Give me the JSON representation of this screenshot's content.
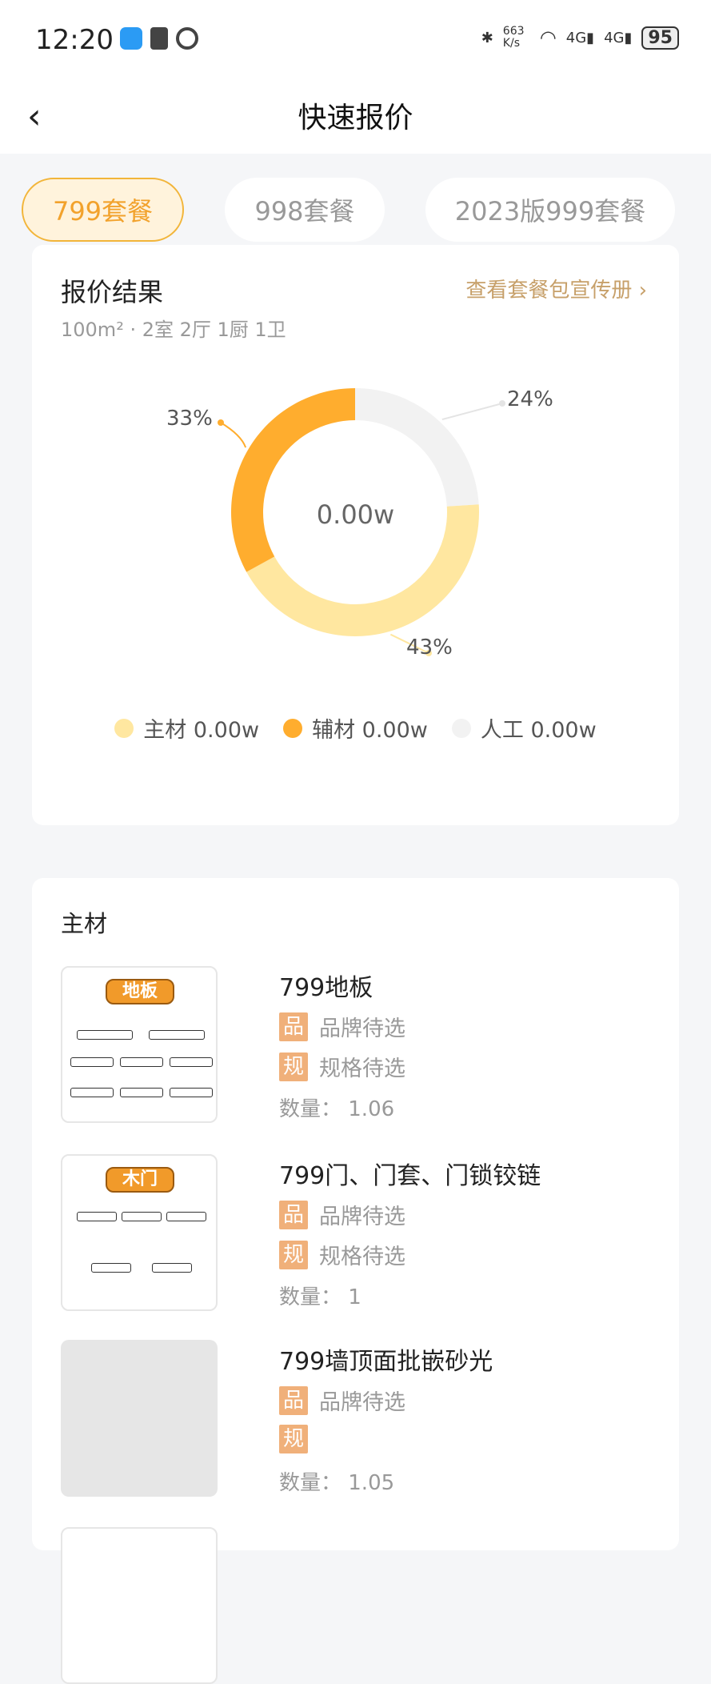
{
  "status": {
    "time": "12:20",
    "net_speed": "663 K/s",
    "battery": "95"
  },
  "header": {
    "title": "快速报价"
  },
  "tabs": [
    {
      "label": "799套餐",
      "active": true
    },
    {
      "label": "998套餐",
      "active": false
    },
    {
      "label": "2023版999套餐",
      "active": false
    }
  ],
  "result": {
    "title": "报价结果",
    "subtitle": "100m² · 2室 2厅 1厨 1卫",
    "link": "查看套餐包宣传册",
    "total": "0.00w"
  },
  "chart_data": {
    "type": "pie",
    "donut": true,
    "center_label": "0.00w",
    "slices": [
      {
        "name": "人工",
        "value": 24,
        "label": "24%",
        "color": "#F2F2F2"
      },
      {
        "name": "主材",
        "value": 43,
        "label": "43%",
        "color": "#FFE7A0"
      },
      {
        "name": "辅材",
        "value": 33,
        "label": "33%",
        "color": "#FFAD2E"
      }
    ],
    "legend": [
      {
        "label": "主材 0.00w",
        "color": "#FFE7A0"
      },
      {
        "label": "辅材 0.00w",
        "color": "#FFAD2E"
      },
      {
        "label": "人工 0.00w",
        "color": "#F2F2F2"
      }
    ],
    "legend_position": "bottom"
  },
  "materials": {
    "title": "主材",
    "items": [
      {
        "name": "799地板",
        "brand": "品牌待选",
        "spec": "规格待选",
        "qty": "数量： 1.06",
        "image_label": "地板",
        "tag_brand": "品",
        "tag_spec": "规"
      },
      {
        "name": "799门、门套、门锁铰链",
        "brand": "品牌待选",
        "spec": "规格待选",
        "qty": "数量： 1",
        "image_label": "木门",
        "tag_brand": "品",
        "tag_spec": "规"
      },
      {
        "name": "799墙顶面批嵌砂光",
        "brand": "品牌待选",
        "spec": "",
        "qty": "数量： 1.05",
        "image_label": "",
        "tag_brand": "品",
        "tag_spec": "规"
      }
    ]
  }
}
